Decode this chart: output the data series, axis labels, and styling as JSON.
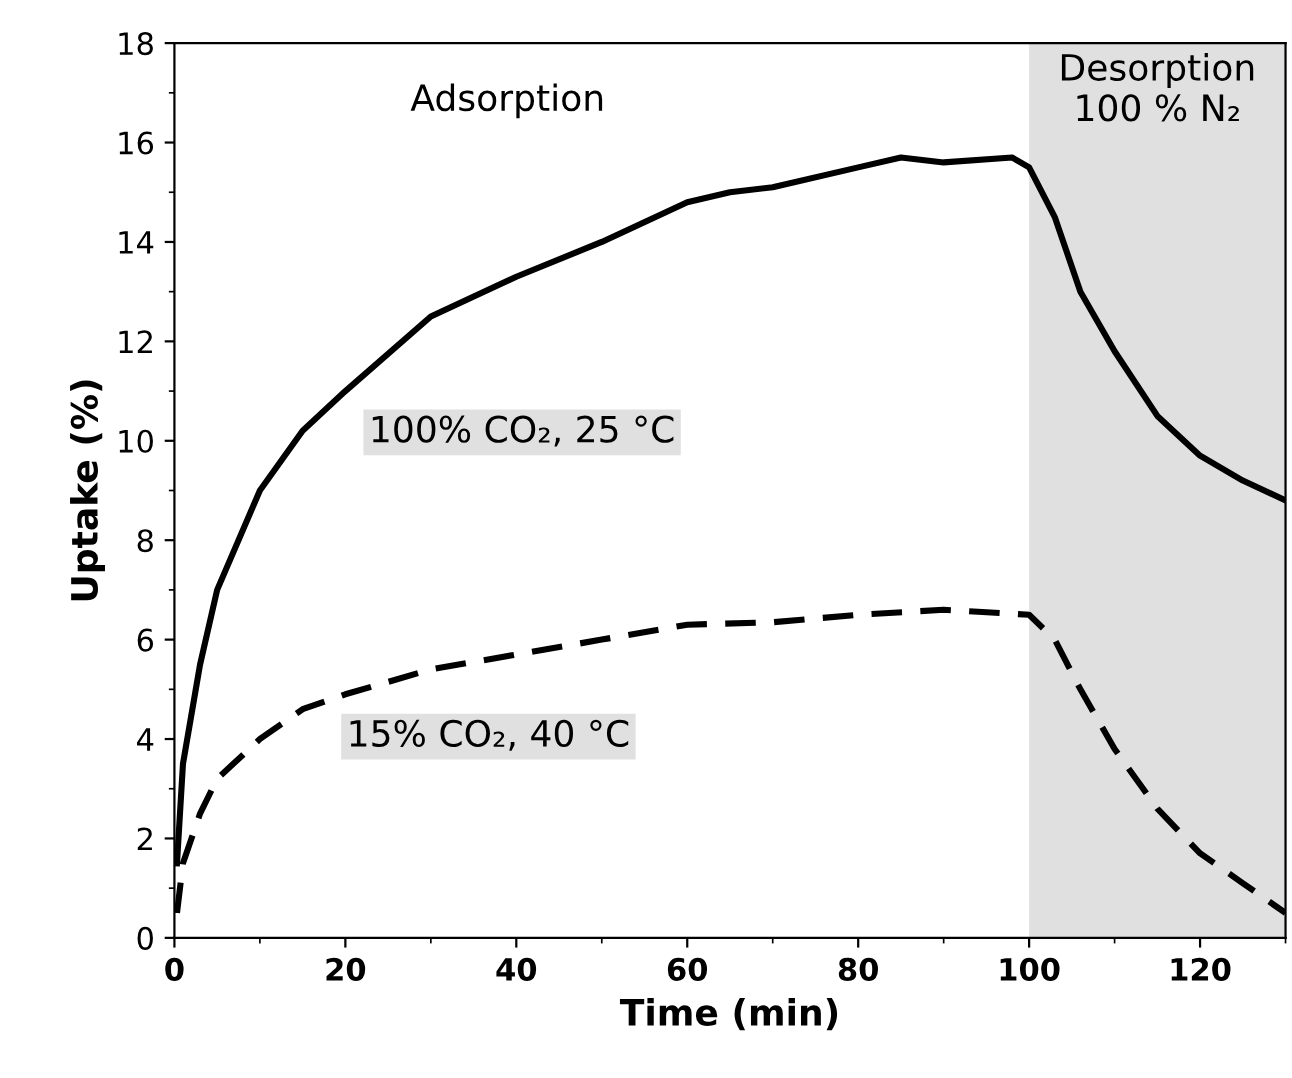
{
  "chart_data": {
    "type": "line",
    "xlabel": "Time (min)",
    "ylabel": "Uptake (%)",
    "xlim": [
      0,
      130
    ],
    "xticks": [
      0,
      20,
      40,
      60,
      80,
      100,
      120
    ],
    "ylim": [
      0,
      18
    ],
    "yticks": [
      0,
      2,
      4,
      6,
      8,
      10,
      12,
      14,
      16,
      18
    ],
    "grid": false,
    "legend": false,
    "marker": "none",
    "series": [
      {
        "color": "#000000",
        "line_style": "solid",
        "x": [
          0.3,
          1,
          3,
          5,
          10,
          15,
          20,
          30,
          40,
          50,
          60,
          65,
          70,
          80,
          85,
          90,
          98,
          100,
          103,
          106,
          110,
          115,
          120,
          125,
          130
        ],
        "values": [
          1.5,
          3.5,
          5.5,
          7,
          9,
          10.2,
          11,
          12.5,
          13.3,
          14,
          14.8,
          15,
          15.1,
          15.5,
          15.7,
          15.6,
          15.7,
          15.5,
          14.5,
          13,
          11.8,
          10.5,
          9.7,
          9.2,
          8.8
        ]
      },
      {
        "color": "#000000",
        "line_style": "dashed",
        "x": [
          0.3,
          1,
          3,
          5,
          10,
          15,
          20,
          30,
          40,
          50,
          60,
          70,
          80,
          90,
          100,
          103,
          106,
          110,
          115,
          120,
          125,
          130
        ],
        "values": [
          0.5,
          1.5,
          2.5,
          3.2,
          4,
          4.6,
          4.9,
          5.4,
          5.7,
          6,
          6.3,
          6.35,
          6.5,
          6.6,
          6.5,
          6,
          5,
          3.8,
          2.6,
          1.7,
          1.1,
          0.5
        ]
      }
    ],
    "bands": [
      {
        "axis": "x",
        "from": 100,
        "to": 130,
        "label": "Desorption\n100 % N₂",
        "color": "#e0e0e0"
      }
    ],
    "annotations": [
      "Adsorption",
      "100% CO₂, 25 °C",
      "15% CO₂, 40 °C"
    ]
  }
}
